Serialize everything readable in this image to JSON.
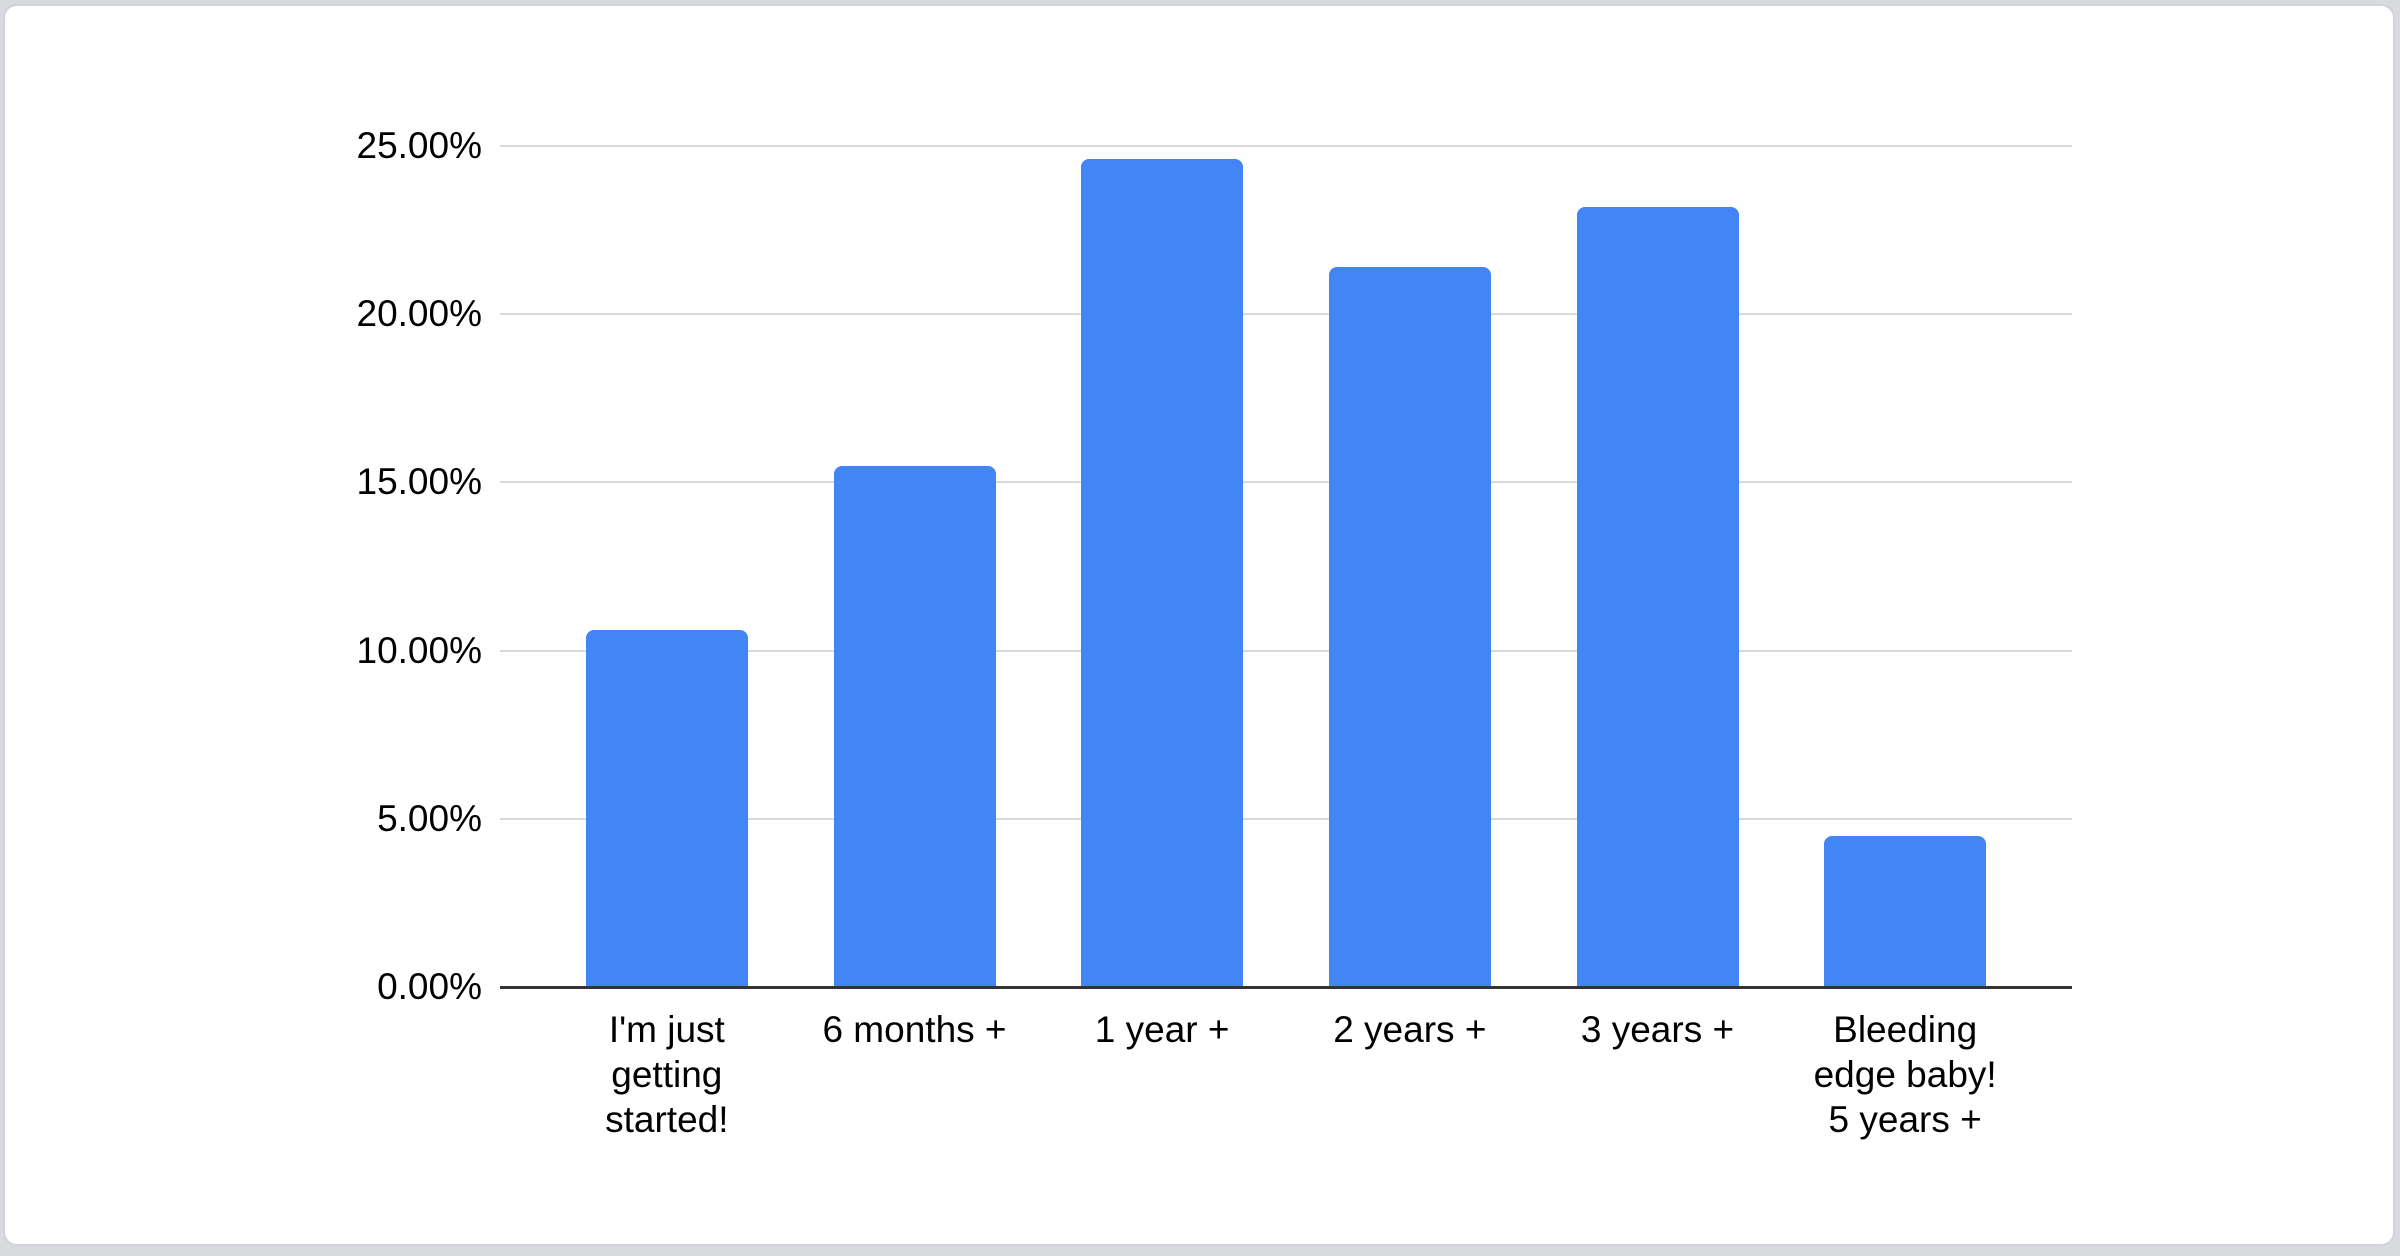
{
  "page": {
    "background_color": "#d8dade",
    "card_color": "#ffffff",
    "card_border_color": "#d0d3d7"
  },
  "chart_data": {
    "type": "bar",
    "title": "",
    "xlabel": "",
    "ylabel": "",
    "categories": [
      "I'm just getting started!",
      "6 months +",
      "1 year +",
      "2 years +",
      "3 years +",
      "Bleeding edge baby! 5 years +"
    ],
    "category_lines": [
      [
        "I'm just",
        "getting",
        "started!"
      ],
      [
        "6 months +"
      ],
      [
        "1 year +"
      ],
      [
        "2 years +"
      ],
      [
        "3 years +"
      ],
      [
        "Bleeding",
        "edge baby!",
        "5 years +"
      ]
    ],
    "values": [
      10.6,
      15.5,
      24.6,
      21.4,
      23.2,
      4.5
    ],
    "unit": "%",
    "ylim": [
      0,
      25
    ],
    "y_ticks": [
      {
        "value": 0,
        "label": "0.00%"
      },
      {
        "value": 5,
        "label": "5.00%"
      },
      {
        "value": 10,
        "label": "10.00%"
      },
      {
        "value": 15,
        "label": "15.00%"
      },
      {
        "value": 20,
        "label": "20.00%"
      },
      {
        "value": 25,
        "label": "25.00%"
      }
    ],
    "grid": true,
    "legend": "none",
    "bar_color": "#4285F4",
    "gridline_color": "#d9d9d9",
    "axis_line_color": "#333333",
    "label_color": "#000000"
  }
}
